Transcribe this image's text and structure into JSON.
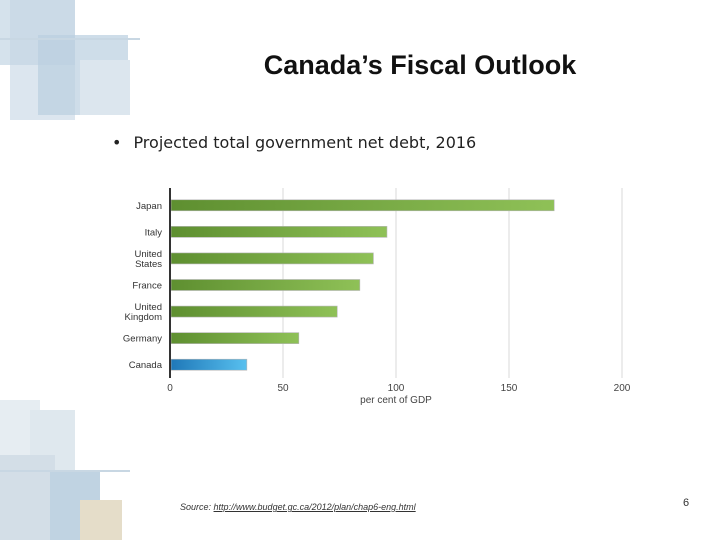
{
  "slide": {
    "title": "Canada’s Fiscal Outlook",
    "bullet": "Projected total government net debt, 2016",
    "source_prefix": "Source: ",
    "source_link": "http://www.budget.gc.ca/2012/plan/chap6-eng.html",
    "page_number": "6"
  },
  "chart_data": {
    "type": "bar",
    "orientation": "horizontal",
    "categories": [
      "Japan",
      "Italy",
      "United States",
      "France",
      "United Kingdom",
      "Germany",
      "Canada"
    ],
    "values": [
      170,
      96,
      90,
      84,
      74,
      57,
      34
    ],
    "xlabel": "per cent of GDP",
    "xlim": [
      0,
      200
    ],
    "xticks": [
      0,
      50,
      100,
      150,
      200
    ],
    "grid": true,
    "colors": {
      "bar": "#7aaa45",
      "bar_dark": "#5e8f30",
      "highlight": "#3fa9e0",
      "highlight_dark": "#1f78b8"
    }
  },
  "colors": {
    "deco_light": "#dde7ee",
    "deco_mid": "#bcd0df",
    "deco_dark": "#8fb0c9"
  }
}
